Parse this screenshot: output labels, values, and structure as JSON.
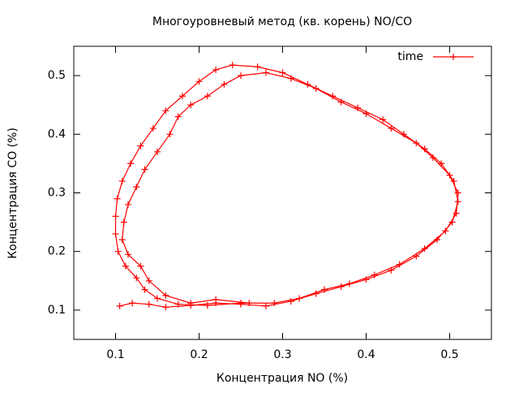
{
  "chart_data": {
    "type": "line",
    "title": "Многоуровневый метод (кв. корень) NO/CO",
    "x_label": "Концентрация NO (%)",
    "y_label": "Концентрация CO (%)",
    "xlim": [
      0.05,
      0.55
    ],
    "ylim": [
      0.05,
      0.55
    ],
    "xticks": [
      0.1,
      0.2,
      0.3,
      0.4,
      0.5
    ],
    "yticks": [
      0.1,
      0.2,
      0.3,
      0.4,
      0.5
    ],
    "legend": "upper right",
    "series": [
      {
        "name": "time",
        "color": "#ff0000",
        "x": [
          0.105,
          0.12,
          0.14,
          0.16,
          0.19,
          0.22,
          0.25,
          0.28,
          0.31,
          0.34,
          0.37,
          0.4,
          0.43,
          0.46,
          0.485,
          0.503,
          0.51,
          0.505,
          0.49,
          0.47,
          0.445,
          0.42,
          0.39,
          0.36,
          0.33,
          0.3,
          0.27,
          0.24,
          0.22,
          0.2,
          0.18,
          0.16,
          0.145,
          0.13,
          0.118,
          0.108,
          0.102,
          0.1,
          0.1,
          0.103,
          0.112,
          0.125,
          0.135,
          0.15,
          0.175,
          0.21,
          0.25,
          0.29,
          0.32,
          0.35,
          0.38,
          0.41,
          0.44,
          0.47,
          0.495,
          0.508,
          0.51,
          0.5,
          0.48,
          0.46,
          0.43,
          0.4,
          0.37,
          0.34,
          0.31,
          0.28,
          0.25,
          0.23,
          0.21,
          0.19,
          0.175,
          0.165,
          0.15,
          0.135,
          0.125,
          0.115,
          0.11,
          0.108,
          0.115,
          0.13,
          0.14,
          0.16,
          0.19,
          0.22,
          0.26
        ],
        "values": [
          0.107,
          0.112,
          0.11,
          0.105,
          0.108,
          0.112,
          0.11,
          0.107,
          0.115,
          0.128,
          0.14,
          0.152,
          0.168,
          0.192,
          0.22,
          0.25,
          0.285,
          0.32,
          0.35,
          0.375,
          0.4,
          0.425,
          0.445,
          0.465,
          0.485,
          0.505,
          0.515,
          0.518,
          0.51,
          0.49,
          0.465,
          0.44,
          0.41,
          0.38,
          0.35,
          0.32,
          0.29,
          0.26,
          0.23,
          0.2,
          0.175,
          0.155,
          0.135,
          0.12,
          0.11,
          0.108,
          0.112,
          0.112,
          0.12,
          0.135,
          0.145,
          0.16,
          0.178,
          0.205,
          0.235,
          0.265,
          0.3,
          0.33,
          0.36,
          0.385,
          0.41,
          0.435,
          0.455,
          0.478,
          0.495,
          0.505,
          0.5,
          0.485,
          0.465,
          0.45,
          0.43,
          0.4,
          0.37,
          0.34,
          0.31,
          0.28,
          0.25,
          0.22,
          0.195,
          0.175,
          0.15,
          0.125,
          0.112,
          0.118,
          0.112
        ]
      }
    ]
  }
}
